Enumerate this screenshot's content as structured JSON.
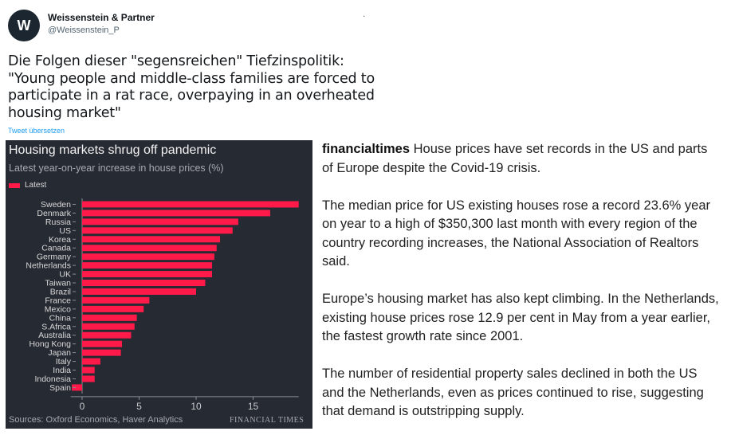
{
  "tweet": {
    "avatar_letter": "W",
    "display_name": "Weissenstein & Partner",
    "handle": "@Weissenstein_P",
    "dot": ".",
    "text_lines": [
      "Die Folgen dieser \"segensreichen\" Tiefzinspolitik:",
      "\"Young people and middle-class families are forced to",
      "participate in a rat race, overpaying in an overheated",
      "housing market\""
    ],
    "translate_link": "Tweet übersetzen"
  },
  "chart_data": {
    "type": "bar",
    "orientation": "horizontal",
    "title": "Housing markets shrug off pandemic",
    "subtitle": "Latest year-on-year increase in house prices (%)",
    "legend": [
      "Latest"
    ],
    "categories": [
      "Sweden",
      "Denmark",
      "Russia",
      "US",
      "Korea",
      "Canada",
      "Germany",
      "Netherlands",
      "UK",
      "Taiwan",
      "Brazil",
      "France",
      "Mexico",
      "China",
      "S.Africa",
      "Australia",
      "Hong Kong",
      "Japan",
      "Italy",
      "India",
      "Indonesia",
      "Spain"
    ],
    "series": [
      {
        "name": "Latest",
        "values": [
          19.0,
          16.5,
          13.7,
          13.2,
          12.1,
          11.8,
          11.6,
          11.4,
          11.4,
          10.8,
          10.0,
          5.9,
          5.4,
          4.8,
          4.6,
          4.3,
          3.5,
          3.4,
          1.6,
          1.1,
          1.1,
          -0.9
        ]
      }
    ],
    "xlim": [
      -1,
      19
    ],
    "xticks": [
      0,
      5,
      10,
      15
    ],
    "grid": false,
    "source": "Sources: Oxford Economics, Haver Analytics",
    "brand": "FINANCIAL TIMES",
    "colors": {
      "bar": "#ff1a4a",
      "background": "#262a33"
    }
  },
  "caption": {
    "source": "financialtimes",
    "lead": " House prices have set records in the US and parts of Europe despite the Covid-19 crisis.",
    "paragraphs": [
      "The median price for US existing houses rose a record 23.6% year on year to a high of $350,300 last month with every region of the country recording increases, the National Association of Realtors said.",
      "Europe’s housing market has also kept climbing. In the Netherlands, existing house prices rose 12.9 per cent in May from a year earlier, the fastest growth rate since 2001.",
      "The number of residential property sales declined in both the US and the Netherlands, even as prices continued to rise, suggesting that demand is outstripping supply."
    ]
  }
}
